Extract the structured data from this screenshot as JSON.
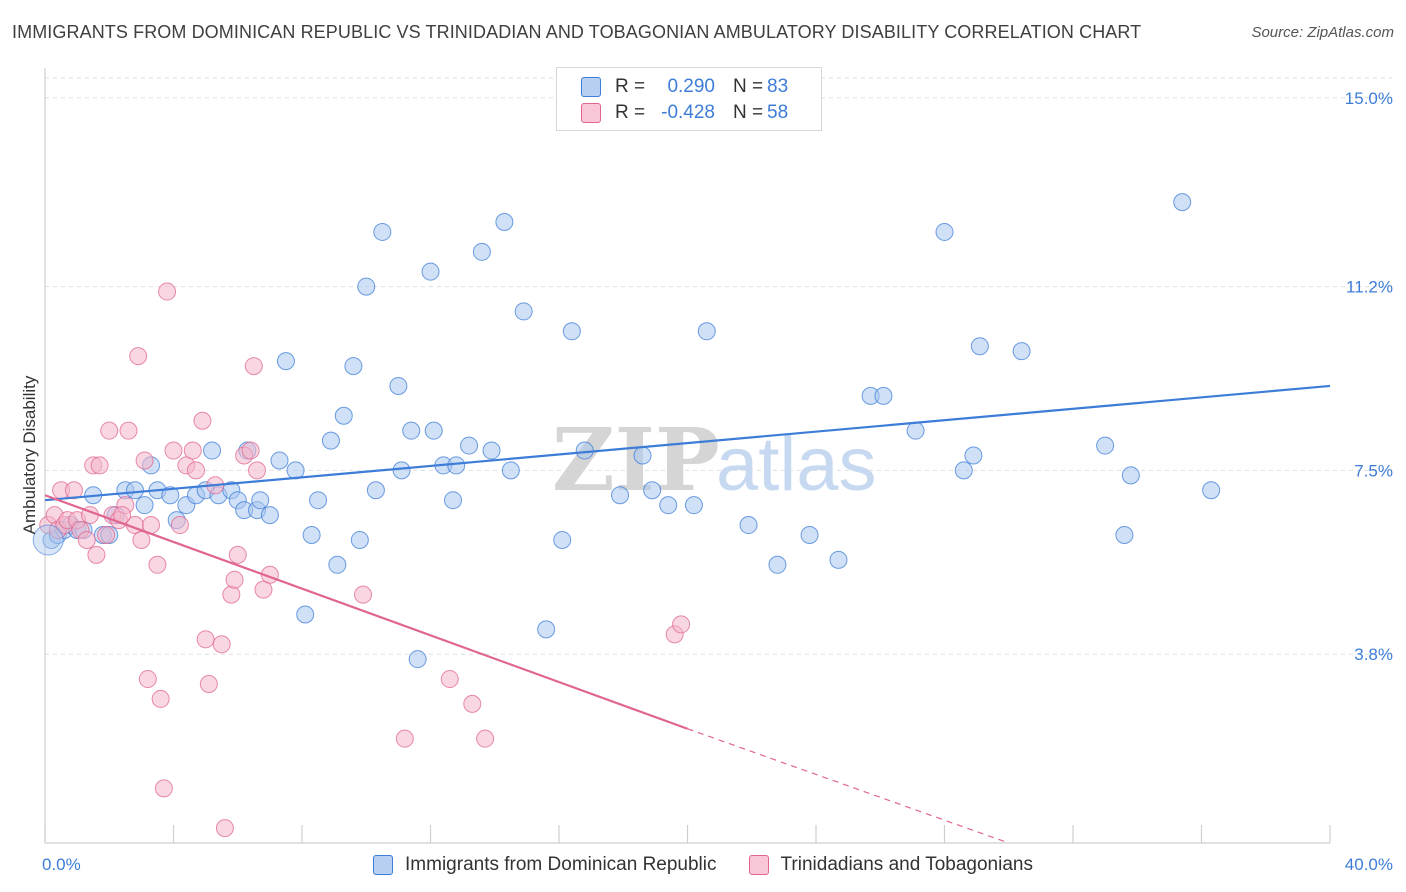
{
  "title": "IMMIGRANTS FROM DOMINICAN REPUBLIC VS TRINIDADIAN AND TOBAGONIAN AMBULATORY DISABILITY CORRELATION CHART",
  "source": "Source: ZipAtlas.com",
  "watermark": {
    "zip": "ZIP",
    "atlas": "atlas"
  },
  "colors": {
    "blue": "#3d7dd8",
    "blue_fill": "#a9c7ee",
    "pink": "#e0668f",
    "pink_fill": "#f4b7cb",
    "grid": "#dedede",
    "tick_text": "#3d7dd8"
  },
  "legend": {
    "series1": {
      "r_label": "R =",
      "r_value": "0.290",
      "n_label": "N =",
      "n_value": "83"
    },
    "series2": {
      "r_label": "R =",
      "r_value": "-0.428",
      "n_label": "N =",
      "n_value": "58"
    }
  },
  "chart_data": {
    "type": "scatter",
    "title": "IMMIGRANTS FROM DOMINICAN REPUBLIC VS TRINIDADIAN AND TOBAGONIAN AMBULATORY DISABILITY CORRELATION CHART",
    "xlabel": "",
    "ylabel": "Ambulatory Disability",
    "xlim": [
      0,
      40
    ],
    "ylim": [
      0,
      15.6
    ],
    "x_tick_labels": [
      "0.0%",
      "40.0%"
    ],
    "y_ticks": [
      3.8,
      7.5,
      11.2,
      15.0
    ],
    "y_tick_labels": [
      "3.8%",
      "7.5%",
      "11.2%",
      "15.0%"
    ],
    "grid": true,
    "legend_position": "top-center",
    "series": [
      {
        "name": "Immigrants from Dominican Republic",
        "color": "#3d7dd8",
        "trend": {
          "x": [
            0,
            40
          ],
          "y": [
            6.9,
            9.2
          ]
        },
        "points": [
          [
            0.2,
            6.1
          ],
          [
            0.4,
            6.2
          ],
          [
            0.6,
            6.3
          ],
          [
            0.8,
            6.4
          ],
          [
            1.0,
            6.3
          ],
          [
            1.2,
            6.3
          ],
          [
            1.5,
            7.0
          ],
          [
            1.8,
            6.2
          ],
          [
            2.0,
            6.2
          ],
          [
            2.2,
            6.6
          ],
          [
            2.5,
            7.1
          ],
          [
            2.8,
            7.1
          ],
          [
            3.1,
            6.8
          ],
          [
            3.3,
            7.6
          ],
          [
            3.5,
            7.1
          ],
          [
            3.9,
            7.0
          ],
          [
            4.1,
            6.5
          ],
          [
            4.4,
            6.8
          ],
          [
            4.7,
            7.0
          ],
          [
            5.0,
            7.1
          ],
          [
            5.2,
            7.9
          ],
          [
            5.4,
            7.0
          ],
          [
            5.8,
            7.1
          ],
          [
            6.0,
            6.9
          ],
          [
            6.2,
            6.7
          ],
          [
            6.3,
            7.9
          ],
          [
            6.6,
            6.7
          ],
          [
            6.7,
            6.9
          ],
          [
            7.0,
            6.6
          ],
          [
            7.3,
            7.7
          ],
          [
            7.5,
            9.7
          ],
          [
            7.8,
            7.5
          ],
          [
            8.1,
            4.6
          ],
          [
            8.3,
            6.2
          ],
          [
            8.5,
            6.9
          ],
          [
            8.9,
            8.1
          ],
          [
            9.1,
            5.6
          ],
          [
            9.3,
            8.6
          ],
          [
            9.6,
            9.6
          ],
          [
            9.8,
            6.1
          ],
          [
            10.0,
            11.2
          ],
          [
            10.3,
            7.1
          ],
          [
            10.5,
            12.3
          ],
          [
            11.0,
            9.2
          ],
          [
            11.1,
            7.5
          ],
          [
            11.4,
            8.3
          ],
          [
            11.6,
            3.7
          ],
          [
            12.0,
            11.5
          ],
          [
            12.1,
            8.3
          ],
          [
            12.4,
            7.6
          ],
          [
            12.7,
            6.9
          ],
          [
            12.8,
            7.6
          ],
          [
            13.2,
            8.0
          ],
          [
            13.6,
            11.9
          ],
          [
            13.9,
            7.9
          ],
          [
            14.3,
            12.5
          ],
          [
            14.5,
            7.5
          ],
          [
            14.9,
            10.7
          ],
          [
            15.6,
            4.3
          ],
          [
            16.1,
            6.1
          ],
          [
            16.4,
            10.3
          ],
          [
            16.8,
            7.9
          ],
          [
            17.9,
            7.0
          ],
          [
            18.6,
            7.8
          ],
          [
            18.9,
            7.1
          ],
          [
            19.4,
            6.8
          ],
          [
            20.2,
            6.8
          ],
          [
            20.6,
            10.3
          ],
          [
            21.9,
            6.4
          ],
          [
            22.8,
            5.6
          ],
          [
            23.8,
            6.2
          ],
          [
            24.7,
            5.7
          ],
          [
            25.7,
            9.0
          ],
          [
            26.1,
            9.0
          ],
          [
            27.1,
            8.3
          ],
          [
            28.0,
            12.3
          ],
          [
            28.6,
            7.5
          ],
          [
            28.9,
            7.8
          ],
          [
            29.1,
            10.0
          ],
          [
            30.4,
            9.9
          ],
          [
            33.0,
            8.0
          ],
          [
            33.6,
            6.2
          ],
          [
            33.8,
            7.4
          ],
          [
            35.4,
            12.9
          ],
          [
            36.3,
            7.1
          ]
        ]
      },
      {
        "name": "Trinidadians and Tobagonians",
        "color": "#e0668f",
        "trend": {
          "x": [
            0,
            20
          ],
          "y": [
            7.0,
            2.3
          ]
        },
        "trend_dashed": {
          "x": [
            20,
            30
          ],
          "y": [
            2.3,
            0.0
          ]
        },
        "points": [
          [
            0.1,
            6.4
          ],
          [
            0.3,
            6.6
          ],
          [
            0.4,
            6.3
          ],
          [
            0.5,
            7.1
          ],
          [
            0.6,
            6.4
          ],
          [
            0.7,
            6.5
          ],
          [
            0.9,
            7.1
          ],
          [
            1.0,
            6.5
          ],
          [
            1.1,
            6.3
          ],
          [
            1.3,
            6.1
          ],
          [
            1.4,
            6.6
          ],
          [
            1.5,
            7.6
          ],
          [
            1.6,
            5.8
          ],
          [
            1.7,
            7.6
          ],
          [
            1.9,
            6.2
          ],
          [
            2.0,
            8.3
          ],
          [
            2.1,
            6.6
          ],
          [
            2.3,
            6.5
          ],
          [
            2.5,
            6.8
          ],
          [
            2.6,
            8.3
          ],
          [
            2.8,
            6.4
          ],
          [
            2.9,
            9.8
          ],
          [
            3.0,
            6.1
          ],
          [
            3.1,
            7.7
          ],
          [
            3.2,
            3.3
          ],
          [
            3.3,
            6.4
          ],
          [
            3.5,
            5.6
          ],
          [
            3.6,
            2.9
          ],
          [
            3.7,
            1.1
          ],
          [
            3.8,
            11.1
          ],
          [
            4.0,
            7.9
          ],
          [
            4.2,
            6.4
          ],
          [
            4.4,
            7.6
          ],
          [
            4.6,
            7.9
          ],
          [
            4.7,
            7.5
          ],
          [
            4.9,
            8.5
          ],
          [
            5.0,
            4.1
          ],
          [
            5.1,
            3.2
          ],
          [
            5.3,
            7.2
          ],
          [
            5.5,
            4.0
          ],
          [
            5.6,
            0.3
          ],
          [
            5.8,
            5.0
          ],
          [
            5.9,
            5.3
          ],
          [
            6.0,
            5.8
          ],
          [
            6.2,
            7.8
          ],
          [
            6.4,
            7.9
          ],
          [
            6.5,
            9.6
          ],
          [
            6.6,
            7.5
          ],
          [
            6.8,
            5.1
          ],
          [
            7.0,
            5.4
          ],
          [
            9.9,
            5.0
          ],
          [
            11.2,
            2.1
          ],
          [
            12.6,
            3.3
          ],
          [
            13.3,
            2.8
          ],
          [
            13.7,
            2.1
          ],
          [
            19.6,
            4.2
          ],
          [
            19.8,
            4.4
          ],
          [
            2.4,
            6.6
          ]
        ]
      }
    ]
  }
}
